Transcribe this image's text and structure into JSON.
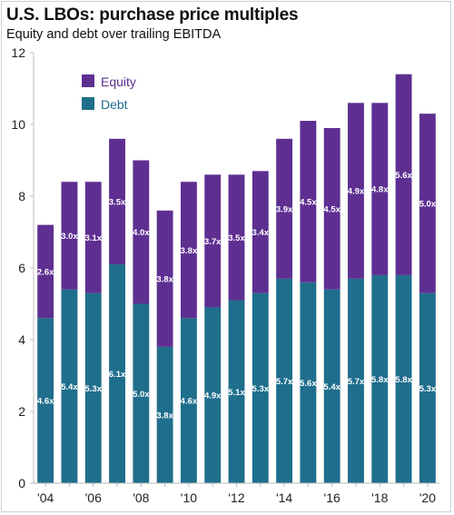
{
  "chart_data": {
    "type": "bar",
    "stacked": true,
    "title": "U.S. LBOs: purchase price multiples",
    "subtitle": "Equity and debt over trailing EBITDA",
    "xlabel": "",
    "ylabel": "",
    "ylim": [
      0,
      12
    ],
    "yticks": [
      "0",
      "2",
      "4",
      "6",
      "8",
      "10",
      "12"
    ],
    "categories": [
      "2004",
      "2005",
      "2006",
      "2007",
      "2008",
      "2009",
      "2010",
      "2011",
      "2012",
      "2013",
      "2014",
      "2015",
      "2016",
      "2017",
      "2018",
      "2019",
      "2020"
    ],
    "x_tick_labels": [
      "'04",
      "",
      "'06",
      "",
      "'08",
      "",
      "'10",
      "",
      "'12",
      "",
      "'14",
      "",
      "'16",
      "",
      "'18",
      "",
      "'20"
    ],
    "legend_position": "top-left",
    "series": [
      {
        "name": "Debt",
        "color": "#1f6e8c",
        "values": [
          4.6,
          5.4,
          5.3,
          6.1,
          5.0,
          3.8,
          4.6,
          4.9,
          5.1,
          5.3,
          5.7,
          5.6,
          5.4,
          5.7,
          5.8,
          5.8,
          5.3
        ],
        "labels": [
          "4.6x",
          "5.4x",
          "5.3x",
          "6.1x",
          "5.0x",
          "3.8x",
          "4.6x",
          "4.9x",
          "5.1x",
          "5.3x",
          "5.7x",
          "5.6x",
          "5.4x",
          "5.7x",
          "5.8x",
          "5.8x",
          "5.3x"
        ]
      },
      {
        "name": "Equity",
        "color": "#5e2f91",
        "values": [
          2.6,
          3.0,
          3.1,
          3.5,
          4.0,
          3.8,
          3.8,
          3.7,
          3.5,
          3.4,
          3.9,
          4.5,
          4.5,
          4.9,
          4.8,
          5.6,
          5.0
        ],
        "labels": [
          "2.6x",
          "3.0x",
          "3.1x",
          "3.5x",
          "4.0x",
          "3.8x",
          "3.8x",
          "3.7x",
          "3.5x",
          "3.4x",
          "3.9x",
          "4.5x",
          "4.5x",
          "4.9x",
          "4.8x",
          "5.6x",
          "5.0x"
        ]
      }
    ],
    "legend": [
      "Equity",
      "Debt"
    ]
  }
}
